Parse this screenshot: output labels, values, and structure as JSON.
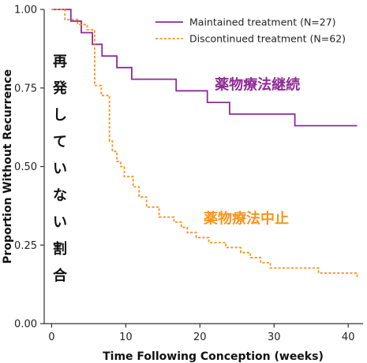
{
  "chart_data": {
    "type": "line",
    "xlabel": "Time Following Conception (weeks)",
    "ylabel": "Proportion Without Recurrence",
    "xlim": [
      -1,
      42
    ],
    "ylim": [
      0,
      1
    ],
    "x_ticks": [
      "0",
      "10",
      "20",
      "30",
      "40"
    ],
    "y_ticks": [
      "0.00",
      "0.25",
      "0.50",
      "0.75",
      "1.00"
    ],
    "grid": false,
    "legend_position": "top-right",
    "series": [
      {
        "name": "Maintained treatment (N=27)",
        "color": "#8e2a96",
        "line_style": "solid",
        "step": true,
        "x": [
          0,
          2.6,
          4,
          5.5,
          6.8,
          8.8,
          10.8,
          16.8,
          21,
          24,
          32.8,
          41.2
        ],
        "y": [
          1.0,
          0.963,
          0.926,
          0.889,
          0.852,
          0.815,
          0.778,
          0.741,
          0.704,
          0.667,
          0.63,
          0.63
        ]
      },
      {
        "name": "Discontinued treatment (N=62)",
        "color": "#f7941d",
        "line_style": "dashed",
        "step": true,
        "x": [
          0,
          1.8,
          3.5,
          4.8,
          5.8,
          6.7,
          7.8,
          8.2,
          8.8,
          9.3,
          9.8,
          11,
          11.8,
          12.8,
          14.5,
          16.5,
          17.5,
          18.3,
          19.5,
          21.2,
          23.5,
          25.5,
          26.8,
          28.2,
          29.5,
          33,
          36,
          41.2
        ],
        "y": [
          1.0,
          0.968,
          0.952,
          0.935,
          0.758,
          0.726,
          0.581,
          0.548,
          0.516,
          0.5,
          0.468,
          0.435,
          0.403,
          0.371,
          0.339,
          0.323,
          0.306,
          0.29,
          0.274,
          0.258,
          0.242,
          0.226,
          0.21,
          0.194,
          0.177,
          0.177,
          0.161,
          0.145
        ]
      }
    ],
    "annotations": [
      {
        "text": "薬物療法継続",
        "color": "#8e2a96",
        "x": 22,
        "y": 0.745
      },
      {
        "text": "薬物療法中止",
        "color": "#f7941d",
        "x": 20.5,
        "y": 0.32
      }
    ],
    "side_label": [
      "再",
      "発",
      "し",
      "て",
      "い",
      "な",
      "い",
      "割",
      "合"
    ]
  }
}
